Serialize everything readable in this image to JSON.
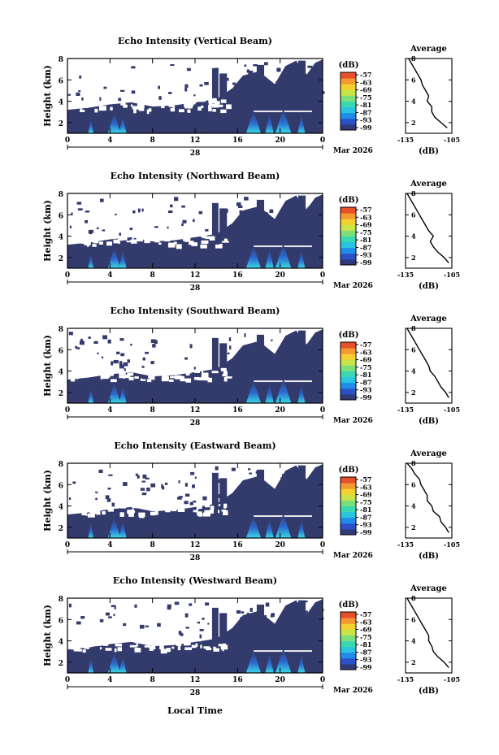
{
  "x_axis": {
    "ticks": [
      "0",
      "4",
      "8",
      "12",
      "16",
      "20",
      "0"
    ],
    "date_label": "28",
    "month_label": "Mar 2026",
    "xlabel": "Local Time"
  },
  "colorbar": {
    "unit_label": "(dB)",
    "ticks": [
      "-57",
      "-63",
      "-69",
      "-75",
      "-81",
      "-87",
      "-93",
      "-99"
    ],
    "colors": [
      "#303a78",
      "#2c50c8",
      "#1e8ce8",
      "#28c4e0",
      "#3ad8b0",
      "#7ce07a",
      "#c8e446",
      "#f4d030",
      "#f49a30",
      "#e8502a"
    ]
  },
  "average_panel": {
    "title": "Average",
    "xlabel": "(dB)",
    "xticks": [
      "-135",
      "-105"
    ],
    "yticks": [
      "2",
      "4",
      "6",
      "8"
    ]
  },
  "panels": [
    {
      "title": "Echo Intensity (Vertical Beam)",
      "ylabel": "Height (km)",
      "yticks": [
        "2",
        "4",
        "6",
        "8"
      ]
    },
    {
      "title": "Echo Intensity (Northward Beam)",
      "ylabel": "Height (km)",
      "yticks": [
        "2",
        "4",
        "6",
        "8"
      ]
    },
    {
      "title": "Echo Intensity (Southward Beam)",
      "ylabel": "Height (km)",
      "yticks": [
        "2",
        "4",
        "6",
        "8"
      ]
    },
    {
      "title": "Echo Intensity (Eastward Beam)",
      "ylabel": "Height (km)",
      "yticks": [
        "2",
        "4",
        "6",
        "8"
      ]
    },
    {
      "title": "Echo Intensity (Westward Beam)",
      "ylabel": "Height (km)",
      "yticks": [
        "2",
        "4",
        "6",
        "8"
      ]
    }
  ],
  "chart_data": [
    {
      "type": "heatmap",
      "title": "Echo Intensity (Vertical Beam)",
      "ylabel": "Height (km)",
      "xlabel": "",
      "xlim_hours": [
        0,
        24
      ],
      "ylim_km": [
        1,
        8
      ],
      "colorbar_range_db": [
        -99,
        -57
      ],
      "average_profile": {
        "title": "Average",
        "xlabel": "(dB)",
        "xlim": [
          -135,
          -105
        ],
        "heights_km": [
          1.5,
          2,
          2.5,
          3,
          3.5,
          4,
          4.5,
          5,
          5.5,
          6,
          6.5,
          7,
          7.5,
          8
        ],
        "values_db": [
          -108,
          -112,
          -116,
          -118,
          -118,
          -121,
          -120,
          -122,
          -124,
          -125,
          -127,
          -129,
          -131,
          -133
        ]
      }
    },
    {
      "type": "heatmap",
      "title": "Echo Intensity (Northward Beam)",
      "ylabel": "Height (km)",
      "xlabel": "",
      "xlim_hours": [
        0,
        24
      ],
      "ylim_km": [
        1,
        8
      ],
      "colorbar_range_db": [
        -99,
        -57
      ],
      "average_profile": {
        "title": "Average",
        "xlabel": "(dB)",
        "xlim": [
          -135,
          -105
        ],
        "heights_km": [
          1.5,
          2,
          2.5,
          3,
          3.5,
          4,
          4.5,
          5,
          5.5,
          6,
          6.5,
          7,
          7.5,
          8
        ],
        "values_db": [
          -107,
          -110,
          -114,
          -117,
          -119,
          -117,
          -120,
          -122,
          -124,
          -126,
          -128,
          -130,
          -132,
          -134
        ]
      }
    },
    {
      "type": "heatmap",
      "title": "Echo Intensity (Southward Beam)",
      "ylabel": "Height (km)",
      "xlabel": "",
      "xlim_hours": [
        0,
        24
      ],
      "ylim_km": [
        1,
        8
      ],
      "colorbar_range_db": [
        -99,
        -57
      ],
      "average_profile": {
        "title": "Average",
        "xlabel": "(dB)",
        "xlim": [
          -135,
          -105
        ],
        "heights_km": [
          1.5,
          2,
          2.5,
          3,
          3.5,
          4,
          4.5,
          5,
          5.5,
          6,
          6.5,
          7,
          7.5,
          8
        ],
        "values_db": [
          -107,
          -109,
          -112,
          -114,
          -116,
          -119,
          -120,
          -122,
          -124,
          -126,
          -128,
          -130,
          -132,
          -134
        ]
      }
    },
    {
      "type": "heatmap",
      "title": "Echo Intensity (Eastward Beam)",
      "ylabel": "Height (km)",
      "xlabel": "",
      "xlim_hours": [
        0,
        24
      ],
      "ylim_km": [
        1,
        8
      ],
      "colorbar_range_db": [
        -99,
        -57
      ],
      "average_profile": {
        "title": "Average",
        "xlabel": "(dB)",
        "xlim": [
          -135,
          -105
        ],
        "heights_km": [
          1.5,
          2,
          2.5,
          3,
          3.5,
          4,
          4.5,
          5,
          5.5,
          6,
          6.5,
          7,
          7.5,
          8
        ],
        "values_db": [
          -107,
          -109,
          -112,
          -113,
          -117,
          -118,
          -121,
          -121,
          -123,
          -125,
          -126,
          -129,
          -131,
          -134
        ]
      }
    },
    {
      "type": "heatmap",
      "title": "Echo Intensity (Westward Beam)",
      "ylabel": "Height (km)",
      "xlabel": "Local Time",
      "xlim_hours": [
        0,
        24
      ],
      "ylim_km": [
        1,
        8
      ],
      "colorbar_range_db": [
        -99,
        -57
      ],
      "average_profile": {
        "title": "Average",
        "xlabel": "(dB)",
        "xlim": [
          -135,
          -105
        ],
        "heights_km": [
          1.5,
          2,
          2.5,
          3,
          3.5,
          4,
          4.5,
          5,
          5.5,
          6,
          6.5,
          7,
          7.5,
          8
        ],
        "values_db": [
          -107,
          -110,
          -114,
          -117,
          -118,
          -120,
          -120,
          -122,
          -124,
          -126,
          -128,
          -130,
          -132,
          -134
        ]
      }
    }
  ]
}
